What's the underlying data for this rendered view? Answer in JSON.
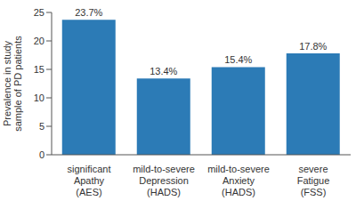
{
  "chart_data": {
    "type": "bar",
    "y_label": "Prevalence in study sample of PD patients",
    "categories": [
      "significant Apathy (AES)",
      "mild-to-severe Depression (HADS)",
      "mild-to-severe Anxiety (HADS)",
      "severe Fatigue (FSS)"
    ],
    "values": [
      23.7,
      13.4,
      15.4,
      17.8
    ],
    "value_labels": [
      "23.7%",
      "13.4%",
      "15.4%",
      "17.8%"
    ],
    "color": "#2c7bb6",
    "ylim": [
      0,
      25
    ],
    "yticks": [
      0,
      5,
      10,
      15,
      20,
      25
    ],
    "grid": false,
    "data_labels": true
  }
}
